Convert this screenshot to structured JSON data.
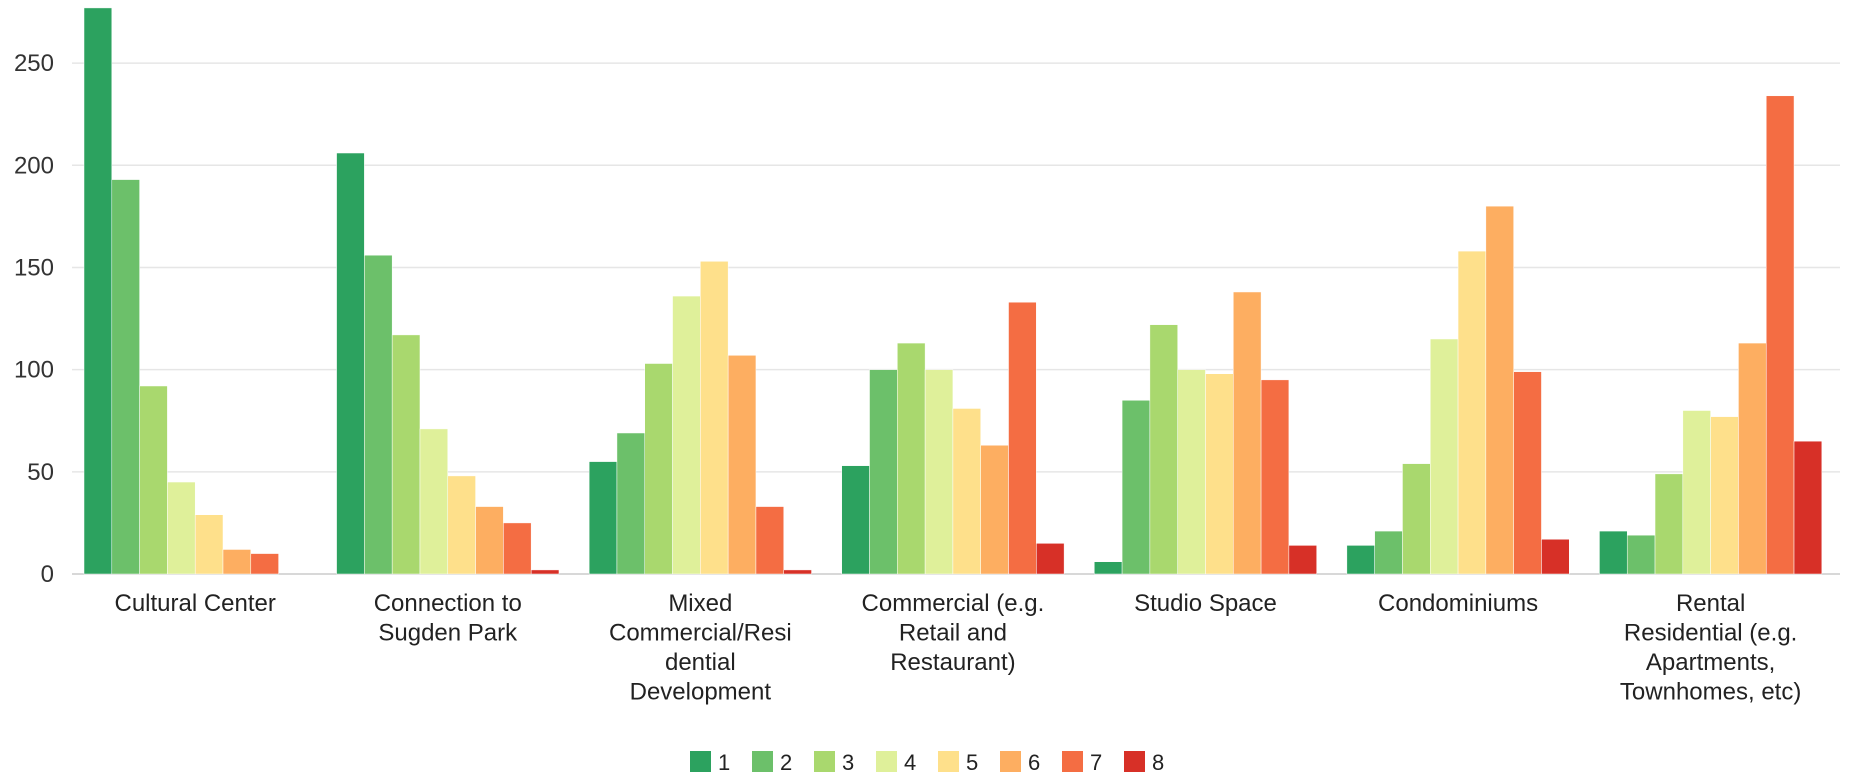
{
  "chart_data": {
    "type": "bar",
    "title": "",
    "xlabel": "",
    "ylabel": "",
    "ylim": [
      0,
      275
    ],
    "yticks": [
      0,
      50,
      100,
      150,
      200,
      250
    ],
    "grid": true,
    "legend_position": "bottom-center",
    "categories": [
      [
        "Cultural Center"
      ],
      [
        "Connection to",
        "Sugden Park"
      ],
      [
        "Mixed",
        "Commercial/Resi",
        "dential",
        "Development"
      ],
      [
        "Commercial (e.g.",
        "Retail and",
        "Restaurant)"
      ],
      [
        "Studio Space"
      ],
      [
        "Condominiums"
      ],
      [
        "Rental",
        "Residential (e.g.",
        "Apartments,",
        "Townhomes, etc)"
      ]
    ],
    "series": [
      {
        "name": "1",
        "color": "#2ca25f",
        "values": [
          277,
          206,
          55,
          53,
          6,
          14,
          21
        ]
      },
      {
        "name": "2",
        "color": "#6cc06a",
        "values": [
          193,
          156,
          69,
          100,
          85,
          21,
          19
        ]
      },
      {
        "name": "3",
        "color": "#a9d86e",
        "values": [
          92,
          117,
          103,
          113,
          122,
          54,
          49
        ]
      },
      {
        "name": "4",
        "color": "#dff09a",
        "values": [
          45,
          71,
          136,
          100,
          100,
          115,
          80
        ]
      },
      {
        "name": "5",
        "color": "#fee08b",
        "values": [
          29,
          48,
          153,
          81,
          98,
          158,
          77
        ]
      },
      {
        "name": "6",
        "color": "#fdae61",
        "values": [
          12,
          33,
          107,
          63,
          138,
          180,
          113
        ]
      },
      {
        "name": "7",
        "color": "#f46d43",
        "values": [
          10,
          25,
          33,
          133,
          95,
          99,
          234
        ]
      },
      {
        "name": "8",
        "color": "#d73027",
        "values": [
          0,
          2,
          2,
          15,
          14,
          17,
          65
        ]
      }
    ]
  }
}
